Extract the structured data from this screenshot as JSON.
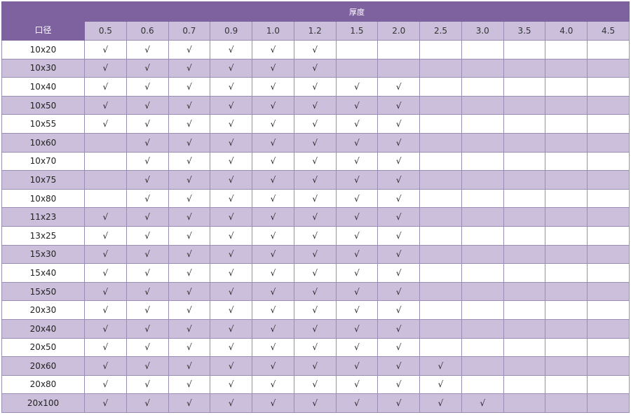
{
  "header": {
    "diameter_label": "口径",
    "thickness_label": "厚度"
  },
  "thicknesses": [
    "0.5",
    "0.6",
    "0.7",
    "0.9",
    "1.0",
    "1.2",
    "1.5",
    "2.0",
    "2.5",
    "3.0",
    "3.5",
    "4.0",
    "4.5"
  ],
  "check_mark": "√",
  "colors": {
    "header": "#7e62a0",
    "band": "#cbbfdc",
    "border": "#9a8db3"
  },
  "rows": [
    {
      "size": "10x20",
      "cells": [
        "√",
        "√",
        "√",
        "√",
        "√",
        "√",
        "",
        "",
        "",
        "",
        "",
        "",
        ""
      ]
    },
    {
      "size": "10x30",
      "cells": [
        "√",
        "√",
        "√",
        "√",
        "√",
        "√",
        "",
        "",
        "",
        "",
        "",
        "",
        ""
      ]
    },
    {
      "size": "10x40",
      "cells": [
        "√",
        "√",
        "√",
        "√",
        "√",
        "√",
        "√",
        "√",
        "",
        "",
        "",
        "",
        ""
      ]
    },
    {
      "size": "10x50",
      "cells": [
        "√",
        "√",
        "√",
        "√",
        "√",
        "√",
        "√",
        "√",
        "",
        "",
        "",
        "",
        ""
      ]
    },
    {
      "size": "10x55",
      "cells": [
        "√",
        "√",
        "√",
        "√",
        "√",
        "√",
        "√",
        "√",
        "",
        "",
        "",
        "",
        ""
      ]
    },
    {
      "size": "10x60",
      "cells": [
        "",
        "√",
        "√",
        "√",
        "√",
        "√",
        "√",
        "√",
        "",
        "",
        "",
        "",
        ""
      ]
    },
    {
      "size": "10x70",
      "cells": [
        "",
        "√",
        "√",
        "√",
        "√",
        "√",
        "√",
        "√",
        "",
        "",
        "",
        "",
        ""
      ]
    },
    {
      "size": "10x75",
      "cells": [
        "",
        "√",
        "√",
        "√",
        "√",
        "√",
        "√",
        "√",
        "",
        "",
        "",
        "",
        ""
      ]
    },
    {
      "size": "10x80",
      "cells": [
        "",
        "√",
        "√",
        "√",
        "√",
        "√",
        "√",
        "√",
        "",
        "",
        "",
        "",
        ""
      ]
    },
    {
      "size": "11x23",
      "cells": [
        "√",
        "√",
        "√",
        "√",
        "√",
        "√",
        "√",
        "√",
        "",
        "",
        "",
        "",
        ""
      ]
    },
    {
      "size": "13x25",
      "cells": [
        "√",
        "√",
        "√",
        "√",
        "√",
        "√",
        "√",
        "√",
        "",
        "",
        "",
        "",
        ""
      ]
    },
    {
      "size": "15x30",
      "cells": [
        "√",
        "√",
        "√",
        "√",
        "√",
        "√",
        "√",
        "√",
        "",
        "",
        "",
        "",
        ""
      ]
    },
    {
      "size": "15x40",
      "cells": [
        "√",
        "√",
        "√",
        "√",
        "√",
        "√",
        "√",
        "√",
        "",
        "",
        "",
        "",
        ""
      ]
    },
    {
      "size": "15x50",
      "cells": [
        "√",
        "√",
        "√",
        "√",
        "√",
        "√",
        "√",
        "√",
        "",
        "",
        "",
        "",
        ""
      ]
    },
    {
      "size": "20x30",
      "cells": [
        "√",
        "√",
        "√",
        "√",
        "√",
        "√",
        "√",
        "√",
        "",
        "",
        "",
        "",
        ""
      ]
    },
    {
      "size": "20x40",
      "cells": [
        "√",
        "√",
        "√",
        "√",
        "√",
        "√",
        "√",
        "√",
        "",
        "",
        "",
        "",
        ""
      ]
    },
    {
      "size": "20x50",
      "cells": [
        "√",
        "√",
        "√",
        "√",
        "√",
        "√",
        "√",
        "√",
        "",
        "",
        "",
        "",
        ""
      ]
    },
    {
      "size": "20x60",
      "cells": [
        "√",
        "√",
        "√",
        "√",
        "√",
        "√",
        "√",
        "√",
        "√",
        "",
        "",
        "",
        ""
      ]
    },
    {
      "size": "20x80",
      "cells": [
        "√",
        "√",
        "√",
        "√",
        "√",
        "√",
        "√",
        "√",
        "√",
        "",
        "",
        "",
        ""
      ]
    },
    {
      "size": "20x100",
      "cells": [
        "√",
        "√",
        "√",
        "√",
        "√",
        "√",
        "√",
        "√",
        "√",
        "√",
        "",
        "",
        ""
      ]
    }
  ]
}
